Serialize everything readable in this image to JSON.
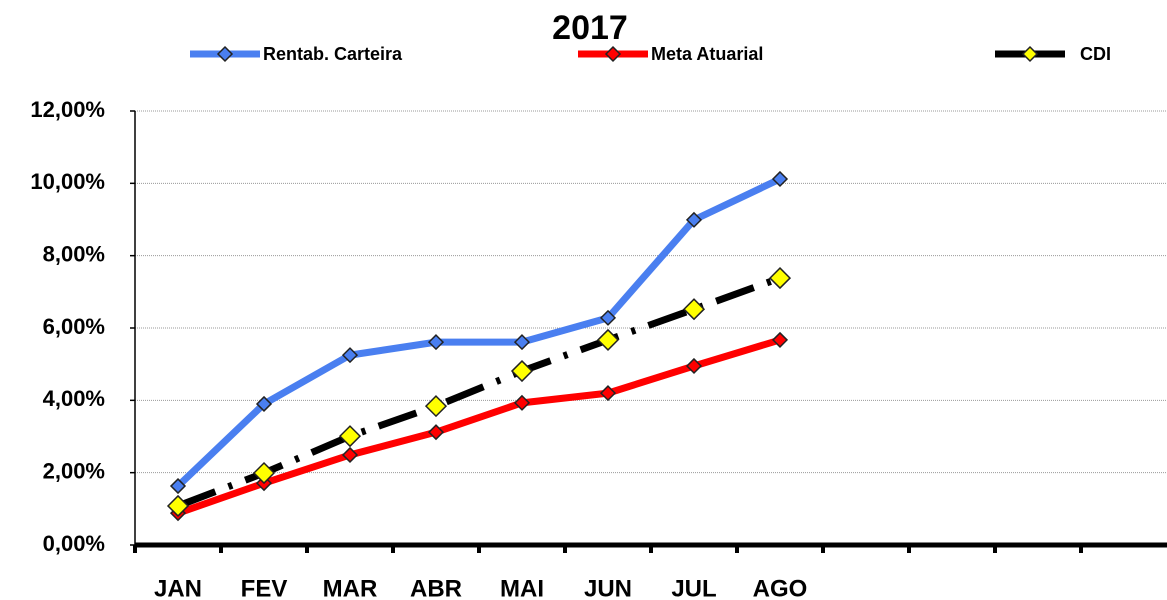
{
  "chart_data": {
    "type": "line",
    "title": "2017",
    "categories": [
      "JAN",
      "FEV",
      "MAR",
      "ABR",
      "MAI",
      "JUN",
      "JUL",
      "AGO",
      null,
      null,
      null,
      null
    ],
    "series": [
      {
        "name": "Rentab. Carteira",
        "color": "#4a7ff0",
        "marker_color": "#4a7ff0",
        "linestyle": "solid",
        "values": [
          1.63,
          3.9,
          5.25,
          5.61,
          5.61,
          6.28,
          8.99,
          10.12,
          null,
          null,
          null,
          null
        ]
      },
      {
        "name": "Meta Atuarial",
        "color": "#ff0000",
        "marker_color": "#ff0000",
        "linestyle": "solid",
        "values": [
          0.88,
          1.71,
          2.49,
          3.12,
          3.93,
          4.2,
          4.95,
          5.67,
          null,
          null,
          null,
          null
        ]
      },
      {
        "name": "CDI",
        "color": "#000000",
        "marker_color": "#ffff00",
        "linestyle": "dashdot",
        "values": [
          1.08,
          1.99,
          3.01,
          3.84,
          4.81,
          5.67,
          6.52,
          7.38,
          null,
          null,
          null,
          null
        ]
      }
    ],
    "ylim": [
      0,
      12
    ],
    "yticks": [
      {
        "value": 0,
        "label": "0,00%"
      },
      {
        "value": 2,
        "label": "2,00%"
      },
      {
        "value": 4,
        "label": "4,00%"
      },
      {
        "value": 6,
        "label": "6,00%"
      },
      {
        "value": 8,
        "label": "8,00%"
      },
      {
        "value": 10,
        "label": "10,00%"
      },
      {
        "value": 12,
        "label": "12,00%"
      }
    ],
    "grid": true,
    "legend": "top"
  }
}
